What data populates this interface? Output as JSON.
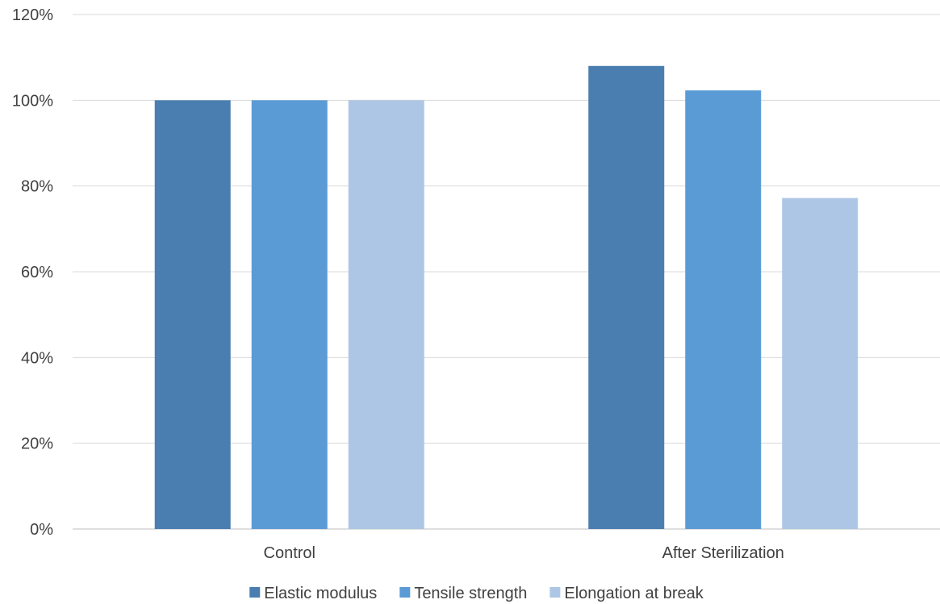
{
  "chart_data": {
    "type": "bar",
    "categories": [
      "Control",
      "After Sterilization"
    ],
    "series": [
      {
        "name": "Elastic modulus",
        "values": [
          100,
          108
        ],
        "color": "#4A7EB0"
      },
      {
        "name": "Tensile strength",
        "values": [
          100,
          102.3
        ],
        "color": "#5B9BD5"
      },
      {
        "name": "Elongation at break",
        "values": [
          100,
          77.2
        ],
        "color": "#ADC6E5"
      }
    ],
    "yticks": [
      "0%",
      "20%",
      "40%",
      "60%",
      "80%",
      "100%",
      "120%"
    ],
    "ylim": [
      0,
      120
    ],
    "grid": true,
    "legend_position": "bottom",
    "title": "",
    "xlabel": "",
    "ylabel": ""
  }
}
